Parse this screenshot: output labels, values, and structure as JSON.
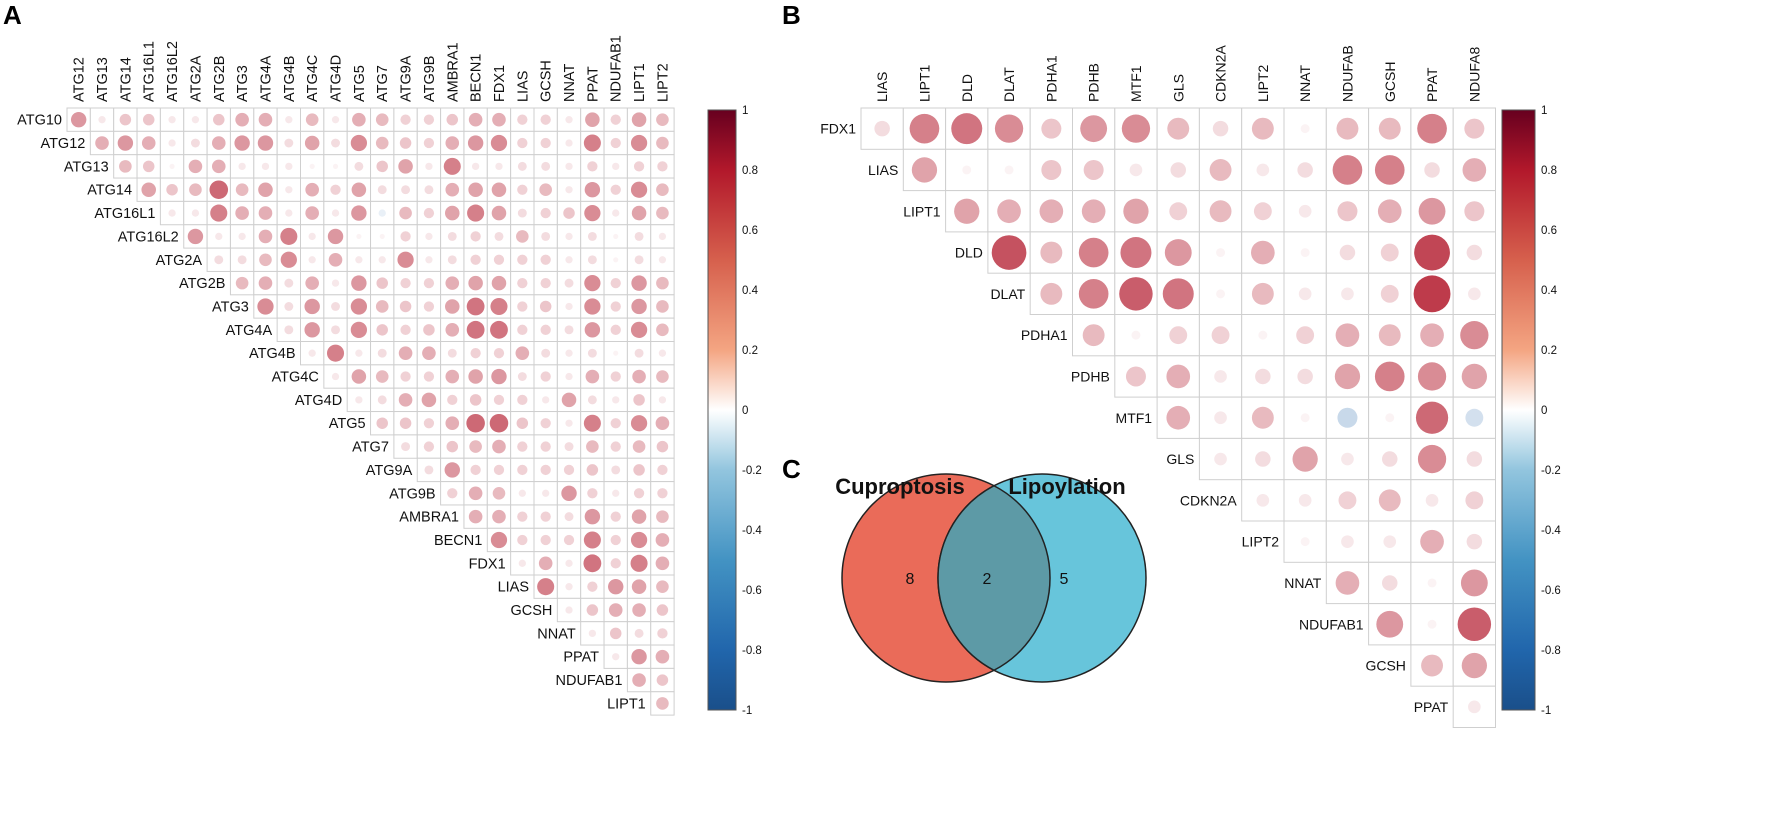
{
  "panels": {
    "a": "A",
    "b": "B",
    "c": "C"
  },
  "chart_data": [
    {
      "type": "correlation_matrix",
      "panel": "A",
      "title": "",
      "layout": "upper-triangle",
      "columns": [
        "ATG12",
        "ATG13",
        "ATG14",
        "ATG16L1",
        "ATG16L2",
        "ATG2A",
        "ATG2B",
        "ATG3",
        "ATG4A",
        "ATG4B",
        "ATG4C",
        "ATG4D",
        "ATG5",
        "ATG7",
        "ATG9A",
        "ATG9B",
        "AMBRA1",
        "BECN1",
        "FDX1",
        "LIAS",
        "GCSH",
        "NNAT",
        "PPAT",
        "NDUFAB1",
        "LIPT1",
        "LIPT2"
      ],
      "rows": [
        "ATG10",
        "ATG12",
        "ATG13",
        "ATG14",
        "ATG16L1",
        "ATG16L2",
        "ATG2A",
        "ATG2B",
        "ATG3",
        "ATG4A",
        "ATG4B",
        "ATG4C",
        "ATG4D",
        "ATG5",
        "ATG7",
        "ATG9A",
        "ATG9B",
        "AMBRA1",
        "BECN1",
        "FDX1",
        "LIAS",
        "GCSH",
        "NNAT",
        "PPAT",
        "NDUFAB1",
        "LIPT1"
      ],
      "colorbar": {
        "range": [
          -1,
          1
        ],
        "ticks": [
          "1",
          "0.8",
          "0.6",
          "0.4",
          "0.2",
          "0",
          "-0.2",
          "-0.4",
          "-0.6",
          "-0.8",
          "-1"
        ]
      },
      "values": [
        [
          0.45,
          0.1,
          0.25,
          0.25,
          0.1,
          0.1,
          0.25,
          0.35,
          0.35,
          0.1,
          0.3,
          0.1,
          0.35,
          0.3,
          0.2,
          0.2,
          0.25,
          0.35,
          0.35,
          0.2,
          0.2,
          0.1,
          0.4,
          0.2,
          0.4,
          0.3
        ],
        [
          null,
          0.35,
          0.45,
          0.35,
          0.1,
          0.15,
          0.35,
          0.45,
          0.45,
          0.15,
          0.4,
          0.15,
          0.5,
          0.3,
          0.25,
          0.2,
          0.35,
          0.45,
          0.5,
          0.2,
          0.2,
          0.1,
          0.55,
          0.2,
          0.5,
          0.3
        ],
        [
          null,
          null,
          0.3,
          0.25,
          0.05,
          0.35,
          0.35,
          0.1,
          0.1,
          0.1,
          0.05,
          0.05,
          0.15,
          0.25,
          0.4,
          0.1,
          0.55,
          0.1,
          0.1,
          0.15,
          0.15,
          0.1,
          0.2,
          0.1,
          0.2,
          0.2
        ],
        [
          null,
          null,
          null,
          0.4,
          0.25,
          0.3,
          0.65,
          0.3,
          0.4,
          0.1,
          0.35,
          0.2,
          0.4,
          0.15,
          0.15,
          0.15,
          0.35,
          0.4,
          0.4,
          0.2,
          0.3,
          0.1,
          0.45,
          0.2,
          0.5,
          0.3
        ],
        [
          null,
          null,
          null,
          null,
          0.1,
          0.1,
          0.55,
          0.35,
          0.35,
          0.1,
          0.35,
          0.1,
          0.45,
          -0.1,
          0.3,
          0.2,
          0.4,
          0.55,
          0.4,
          0.15,
          0.2,
          0.25,
          0.5,
          0.1,
          0.4,
          0.3
        ],
        [
          null,
          null,
          null,
          null,
          null,
          0.45,
          0.1,
          0.1,
          0.35,
          0.55,
          0.1,
          0.45,
          0.05,
          0.05,
          0.2,
          0.1,
          0.15,
          0.2,
          0.15,
          0.3,
          0.15,
          0.1,
          0.15,
          0.05,
          0.15,
          0.1
        ],
        [
          null,
          null,
          null,
          null,
          null,
          null,
          0.15,
          0.15,
          0.3,
          0.5,
          0.1,
          0.35,
          0.1,
          0.1,
          0.5,
          0.1,
          0.15,
          0.2,
          0.2,
          0.2,
          0.2,
          0.1,
          0.15,
          0.05,
          0.15,
          0.1
        ],
        [
          null,
          null,
          null,
          null,
          null,
          null,
          null,
          0.3,
          0.35,
          0.15,
          0.35,
          0.1,
          0.45,
          0.25,
          0.2,
          0.2,
          0.35,
          0.4,
          0.4,
          0.2,
          0.2,
          0.15,
          0.5,
          0.2,
          0.45,
          0.3
        ],
        [
          null,
          null,
          null,
          null,
          null,
          null,
          null,
          null,
          0.5,
          0.15,
          0.45,
          0.15,
          0.5,
          0.3,
          0.25,
          0.2,
          0.4,
          0.6,
          0.55,
          0.2,
          0.25,
          0.1,
          0.5,
          0.2,
          0.45,
          0.3
        ],
        [
          null,
          null,
          null,
          null,
          null,
          null,
          null,
          null,
          null,
          0.15,
          0.45,
          0.15,
          0.5,
          0.25,
          0.2,
          0.25,
          0.35,
          0.6,
          0.6,
          0.2,
          0.2,
          0.15,
          0.45,
          0.2,
          0.5,
          0.3
        ],
        [
          null,
          null,
          null,
          null,
          null,
          null,
          null,
          null,
          null,
          null,
          0.1,
          0.55,
          0.1,
          0.15,
          0.35,
          0.35,
          0.15,
          0.2,
          0.2,
          0.35,
          0.15,
          0.1,
          0.15,
          0.05,
          0.15,
          0.1
        ],
        [
          null,
          null,
          null,
          null,
          null,
          null,
          null,
          null,
          null,
          null,
          null,
          0.1,
          0.4,
          0.3,
          0.2,
          0.2,
          0.35,
          0.4,
          0.45,
          0.15,
          0.2,
          0.1,
          0.35,
          0.2,
          0.35,
          0.3
        ],
        [
          null,
          null,
          null,
          null,
          null,
          null,
          null,
          null,
          null,
          null,
          null,
          null,
          0.1,
          0.15,
          0.35,
          0.4,
          0.2,
          0.25,
          0.2,
          0.2,
          0.1,
          0.4,
          0.15,
          0.1,
          0.25,
          0.1
        ],
        [
          null,
          null,
          null,
          null,
          null,
          null,
          null,
          null,
          null,
          null,
          null,
          null,
          null,
          0.25,
          0.25,
          0.2,
          0.35,
          0.65,
          0.65,
          0.25,
          0.2,
          0.1,
          0.55,
          0.2,
          0.5,
          0.35
        ],
        [
          null,
          null,
          null,
          null,
          null,
          null,
          null,
          null,
          null,
          null,
          null,
          null,
          null,
          null,
          0.15,
          0.2,
          0.25,
          0.3,
          0.35,
          0.2,
          0.2,
          0.15,
          0.3,
          0.2,
          0.3,
          0.25
        ],
        [
          null,
          null,
          null,
          null,
          null,
          null,
          null,
          null,
          null,
          null,
          null,
          null,
          null,
          null,
          null,
          0.15,
          0.45,
          0.2,
          0.2,
          0.2,
          0.2,
          0.2,
          0.25,
          0.15,
          0.25,
          0.2
        ],
        [
          null,
          null,
          null,
          null,
          null,
          null,
          null,
          null,
          null,
          null,
          null,
          null,
          null,
          null,
          null,
          null,
          0.2,
          0.35,
          0.3,
          0.1,
          0.1,
          0.45,
          0.2,
          0.1,
          0.2,
          0.2
        ],
        [
          null,
          null,
          null,
          null,
          null,
          null,
          null,
          null,
          null,
          null,
          null,
          null,
          null,
          null,
          null,
          null,
          null,
          0.35,
          0.35,
          0.2,
          0.2,
          0.15,
          0.45,
          0.2,
          0.4,
          0.3
        ],
        [
          null,
          null,
          null,
          null,
          null,
          null,
          null,
          null,
          null,
          null,
          null,
          null,
          null,
          null,
          null,
          null,
          null,
          null,
          0.5,
          0.2,
          0.2,
          0.2,
          0.55,
          0.2,
          0.5,
          0.35
        ],
        [
          null,
          null,
          null,
          null,
          null,
          null,
          null,
          null,
          null,
          null,
          null,
          null,
          null,
          null,
          null,
          null,
          null,
          null,
          null,
          0.1,
          0.35,
          0.1,
          0.6,
          0.2,
          0.55,
          0.35
        ],
        [
          null,
          null,
          null,
          null,
          null,
          null,
          null,
          null,
          null,
          null,
          null,
          null,
          null,
          null,
          null,
          null,
          null,
          null,
          null,
          null,
          0.55,
          0.1,
          0.2,
          0.45,
          0.4,
          0.3
        ],
        [
          null,
          null,
          null,
          null,
          null,
          null,
          null,
          null,
          null,
          null,
          null,
          null,
          null,
          null,
          null,
          null,
          null,
          null,
          null,
          null,
          null,
          0.1,
          0.25,
          0.35,
          0.35,
          0.25
        ],
        [
          null,
          null,
          null,
          null,
          null,
          null,
          null,
          null,
          null,
          null,
          null,
          null,
          null,
          null,
          null,
          null,
          null,
          null,
          null,
          null,
          null,
          null,
          0.1,
          0.25,
          0.15,
          0.2
        ],
        [
          null,
          null,
          null,
          null,
          null,
          null,
          null,
          null,
          null,
          null,
          null,
          null,
          null,
          null,
          null,
          null,
          null,
          null,
          null,
          null,
          null,
          null,
          null,
          0.1,
          0.45,
          0.35
        ],
        [
          null,
          null,
          null,
          null,
          null,
          null,
          null,
          null,
          null,
          null,
          null,
          null,
          null,
          null,
          null,
          null,
          null,
          null,
          null,
          null,
          null,
          null,
          null,
          null,
          0.35,
          0.25
        ],
        [
          null,
          null,
          null,
          null,
          null,
          null,
          null,
          null,
          null,
          null,
          null,
          null,
          null,
          null,
          null,
          null,
          null,
          null,
          null,
          null,
          null,
          null,
          null,
          null,
          null,
          0.3
        ]
      ]
    },
    {
      "type": "correlation_matrix",
      "panel": "B",
      "title": "",
      "layout": "upper-triangle",
      "columns": [
        "LIAS",
        "LIPT1",
        "DLD",
        "DLAT",
        "PDHA1",
        "PDHB",
        "MTF1",
        "GLS",
        "CDKN2A",
        "LIPT2",
        "NNAT",
        "NDUFAB",
        "GCSH",
        "PPAT",
        "NDUFA8"
      ],
      "rows": [
        "FDX1",
        "LIAS",
        "LIPT1",
        "DLD",
        "DLAT",
        "PDHA1",
        "PDHB",
        "MTF1",
        "GLS",
        "CDKN2A",
        "LIPT2",
        "NNAT",
        "NDUFAB1",
        "GCSH",
        "PPAT"
      ],
      "colorbar": {
        "range": [
          -1,
          1
        ],
        "ticks": [
          "1",
          "0.8",
          "0.6",
          "0.4",
          "0.2",
          "0",
          "-0.2",
          "-0.4",
          "-0.6",
          "-0.8",
          "-1"
        ]
      },
      "values": [
        [
          0.15,
          0.55,
          0.6,
          0.5,
          0.25,
          0.45,
          0.5,
          0.3,
          0.15,
          0.3,
          0.05,
          0.3,
          0.3,
          0.55,
          0.25
        ],
        [
          null,
          0.4,
          0.05,
          0.05,
          0.25,
          0.25,
          0.1,
          0.15,
          0.3,
          0.1,
          0.15,
          0.55,
          0.55,
          0.15,
          0.35
        ],
        [
          null,
          null,
          0.4,
          0.35,
          0.35,
          0.35,
          0.4,
          0.2,
          0.3,
          0.2,
          0.1,
          0.25,
          0.35,
          0.45,
          0.25
        ],
        [
          null,
          null,
          null,
          0.75,
          0.3,
          0.55,
          0.6,
          0.45,
          0.05,
          0.35,
          0.05,
          0.15,
          0.2,
          0.8,
          0.15
        ],
        [
          null,
          null,
          null,
          null,
          0.3,
          0.55,
          0.7,
          0.6,
          0.05,
          0.3,
          0.1,
          0.1,
          0.2,
          0.85,
          0.1
        ],
        [
          null,
          null,
          null,
          null,
          null,
          0.3,
          0.05,
          0.2,
          0.2,
          0.05,
          0.2,
          0.35,
          0.3,
          0.35,
          0.5
        ],
        [
          null,
          null,
          null,
          null,
          null,
          null,
          0.25,
          0.35,
          0.1,
          0.15,
          0.15,
          0.4,
          0.55,
          0.5,
          0.4
        ],
        [
          null,
          null,
          null,
          null,
          null,
          null,
          null,
          0.35,
          0.1,
          0.3,
          0.05,
          -0.25,
          0.05,
          0.65,
          -0.2
        ],
        [
          null,
          null,
          null,
          null,
          null,
          null,
          null,
          null,
          0.1,
          0.15,
          0.4,
          0.1,
          0.15,
          0.5,
          0.15
        ],
        [
          null,
          null,
          null,
          null,
          null,
          null,
          null,
          null,
          null,
          0.1,
          0.1,
          0.2,
          0.3,
          0.1,
          0.2
        ],
        [
          null,
          null,
          null,
          null,
          null,
          null,
          null,
          null,
          null,
          null,
          0.05,
          0.1,
          0.1,
          0.35,
          0.15
        ],
        [
          null,
          null,
          null,
          null,
          null,
          null,
          null,
          null,
          null,
          null,
          null,
          0.35,
          0.15,
          0.05,
          0.45
        ],
        [
          null,
          null,
          null,
          null,
          null,
          null,
          null,
          null,
          null,
          null,
          null,
          null,
          0.45,
          0.05,
          0.7
        ],
        [
          null,
          null,
          null,
          null,
          null,
          null,
          null,
          null,
          null,
          null,
          null,
          null,
          null,
          0.3,
          0.4
        ],
        [
          null,
          null,
          null,
          null,
          null,
          null,
          null,
          null,
          null,
          null,
          null,
          null,
          null,
          null,
          0.1
        ]
      ]
    },
    {
      "type": "venn",
      "panel": "C",
      "sets": [
        {
          "name": "Cuproptosis",
          "only": "8",
          "color": "#ea6b59"
        },
        {
          "name": "Lipoylation",
          "only": "5",
          "color": "#67c5db"
        }
      ],
      "intersection": "2",
      "intersection_color": "#5d9aa6"
    }
  ],
  "colors": {
    "positive": "#b2182b",
    "negative": "#2166ac",
    "neutral": "#ffffff",
    "grid": "#cfcfcf"
  }
}
